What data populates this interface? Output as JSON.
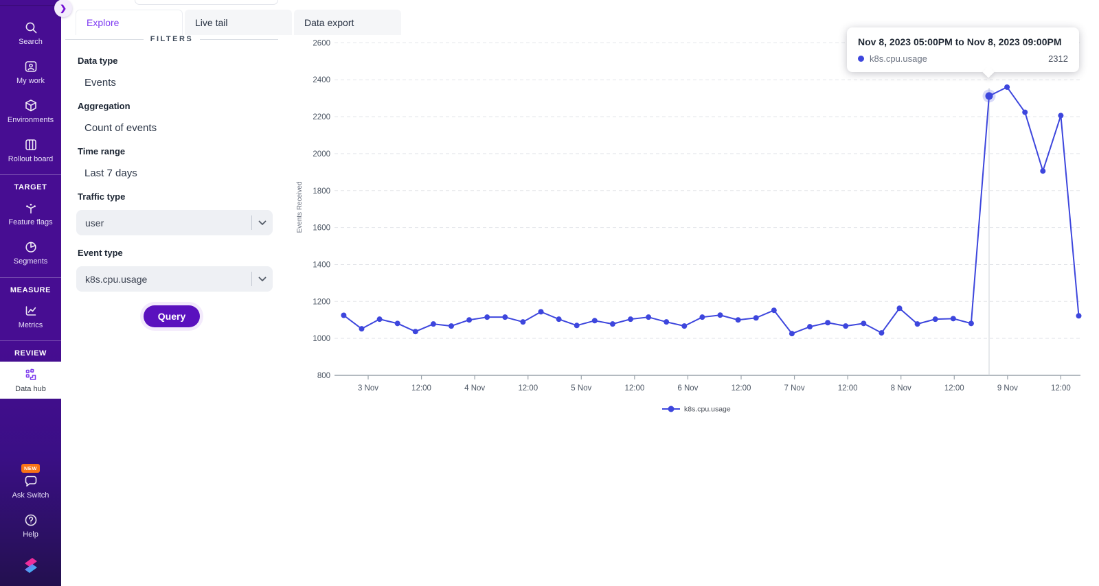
{
  "colors": {
    "sidebar_purple": "#470d92",
    "accent_purple": "#7c3aed",
    "active_tab_text": "#7e3af2",
    "series_blue": "#3d46dd",
    "badge_orange": "#f97316",
    "query_button": "#5a11be"
  },
  "sidebar": {
    "expand_icon": "chevron-right-icon",
    "top_items": [
      {
        "label": "Search",
        "icon": "search-icon"
      },
      {
        "label": "My work",
        "icon": "user-badge-icon"
      },
      {
        "label": "Environments",
        "icon": "cube-icon"
      },
      {
        "label": "Rollout board",
        "icon": "kanban-columns-icon"
      }
    ],
    "sections": [
      {
        "title": "TARGET",
        "items": [
          {
            "label": "Feature flags",
            "icon": "branch-flags-icon"
          },
          {
            "label": "Segments",
            "icon": "pie-chart-icon"
          }
        ]
      },
      {
        "title": "MEASURE",
        "items": [
          {
            "label": "Metrics",
            "icon": "line-chart-icon"
          }
        ]
      },
      {
        "title": "REVIEW",
        "items": [
          {
            "label": "Data hub",
            "icon": "data-hub-icon",
            "active": true
          }
        ]
      }
    ],
    "bottom_items": [
      {
        "label": "Ask Switch",
        "icon": "chat-bubble-icon",
        "badge": "NEW"
      },
      {
        "label": "Help",
        "icon": "help-circle-icon"
      }
    ],
    "logo": "switch-logo"
  },
  "tabs": [
    {
      "label": "Explore",
      "active": true
    },
    {
      "label": "Live tail",
      "active": false
    },
    {
      "label": "Data export",
      "active": false
    }
  ],
  "filters": {
    "heading": "FILTERS",
    "data_type": {
      "label": "Data type",
      "value": "Events"
    },
    "aggregation": {
      "label": "Aggregation",
      "value": "Count of events"
    },
    "time_range": {
      "label": "Time range",
      "value": "Last 7 days"
    },
    "traffic_type": {
      "label": "Traffic type",
      "value": "user"
    },
    "event_type": {
      "label": "Event type",
      "value": "k8s.cpu.usage"
    },
    "query_label": "Query"
  },
  "tooltip": {
    "title": "Nov 8, 2023 05:00PM to Nov 8, 2023 09:00PM",
    "series": "k8s.cpu.usage",
    "value": "2312"
  },
  "chart_data": {
    "type": "line",
    "title": "",
    "xlabel": "",
    "ylabel": "Events Received",
    "ylim": [
      800,
      2600
    ],
    "y_ticks": [
      800,
      1000,
      1200,
      1400,
      1600,
      1800,
      2000,
      2200,
      2400,
      2600
    ],
    "x_ticks": [
      "3 Nov",
      "12:00",
      "4 Nov",
      "12:00",
      "5 Nov",
      "12:00",
      "6 Nov",
      "12:00",
      "7 Nov",
      "12:00",
      "8 Nov",
      "12:00",
      "9 Nov",
      "12:00"
    ],
    "grid": "dashed-horizontal",
    "legend_position": "bottom-center",
    "legend": [
      "k8s.cpu.usage"
    ],
    "series": [
      {
        "name": "k8s.cpu.usage",
        "color": "#3d46dd",
        "point_interval_hours": 4,
        "values": [
          1125,
          1052,
          1104,
          1081,
          1037,
          1078,
          1067,
          1100,
          1115,
          1115,
          1089,
          1144,
          1104,
          1070,
          1096,
          1078,
          1104,
          1115,
          1089,
          1067,
          1115,
          1126,
          1100,
          1111,
          1152,
          1026,
          1063,
          1085,
          1067,
          1081,
          1030,
          1163,
          1078,
          1104,
          1107,
          1081,
          2312,
          2360,
          2224,
          1906,
          2206,
          1122
        ]
      }
    ],
    "hovered": {
      "index": 36,
      "value": 2312,
      "range_label": "Nov 8, 2023 05:00PM to Nov 8, 2023 09:00PM"
    }
  }
}
